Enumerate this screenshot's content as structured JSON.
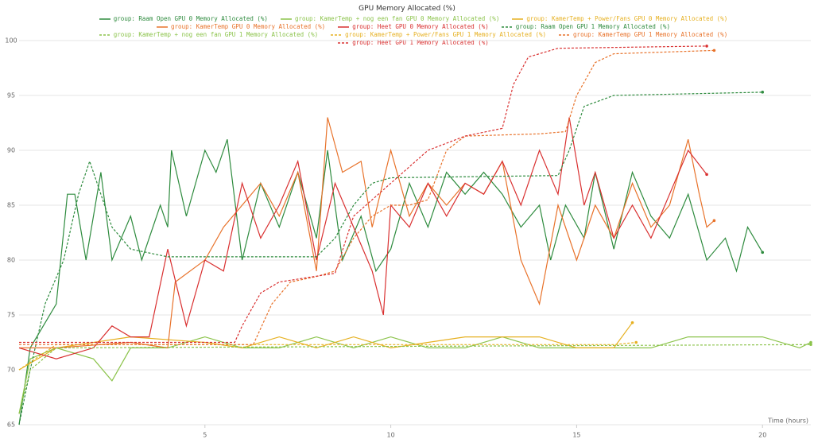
{
  "chart_data": {
    "type": "line",
    "title": "GPU Memory Allocated (%)",
    "x_label": "Time (hours)",
    "xlim": [
      0,
      21.3
    ],
    "ylim": [
      65,
      100
    ],
    "xticks": [
      5,
      10,
      15,
      20
    ],
    "yticks": [
      65,
      70,
      75,
      80,
      85,
      90,
      95,
      100
    ],
    "grid": true,
    "end_marker": true,
    "series": [
      {
        "name": "group: Raam Open GPU 0 Memory Allocated (%)",
        "color": "#2e8b3e",
        "style": "solid",
        "x": [
          0,
          0.3,
          1,
          1.3,
          1.5,
          1.8,
          2.2,
          2.5,
          3,
          3.3,
          3.8,
          4,
          4.1,
          4.5,
          5,
          5.3,
          5.6,
          6,
          6.5,
          7,
          7.5,
          8,
          8.3,
          8.7,
          9.2,
          9.6,
          10,
          10.5,
          11,
          11.5,
          12,
          12.5,
          13,
          13.5,
          14,
          14.3,
          14.7,
          15.2,
          15.5,
          16,
          16.5,
          17,
          17.5,
          18,
          18.5,
          19,
          19.3,
          19.6,
          20
        ],
        "values": [
          65,
          72,
          76,
          86,
          86,
          80,
          88,
          80,
          84,
          80,
          85,
          83,
          90,
          84,
          90,
          88,
          91,
          80,
          87,
          83,
          88,
          82,
          90,
          80,
          84,
          79,
          81,
          87,
          83,
          88,
          86,
          88,
          86,
          83,
          85,
          80,
          85,
          82,
          88,
          81,
          88,
          84,
          82,
          86,
          80,
          82,
          79,
          83,
          80.7
        ]
      },
      {
        "name": "group: KamerTemp + nog een fan GPU 0 Memory Allocated (%)",
        "color": "#8bc34a",
        "style": "solid",
        "x": [
          0,
          0.3,
          1,
          2,
          2.5,
          3,
          4,
          5,
          6,
          7,
          8,
          9,
          10,
          11,
          12,
          13,
          14,
          15,
          16,
          17,
          18,
          19,
          20,
          21,
          21.3
        ],
        "values": [
          66,
          71,
          72,
          71,
          69,
          72,
          72,
          73,
          72,
          72,
          73,
          72,
          73,
          72,
          72,
          73,
          72,
          72,
          72,
          72,
          73,
          73,
          73,
          72,
          72.5
        ]
      },
      {
        "name": "group: KamerTemp + Power/Fans GPU 0 Memory Allocated (%)",
        "color": "#e6b020",
        "style": "solid",
        "x": [
          0,
          1,
          3,
          5,
          6,
          7,
          8,
          9,
          10,
          12,
          14,
          15,
          16,
          16.5
        ],
        "values": [
          70,
          72,
          73,
          72.5,
          72,
          73,
          72,
          73,
          72,
          73,
          73,
          72,
          72,
          74.3
        ]
      },
      {
        "name": "group: KamerTemp GPU 0 Memory Allocated (%)",
        "color": "#e8722a",
        "style": "solid",
        "x": [
          0,
          1,
          3,
          4,
          4.2,
          5,
          5.5,
          6,
          6.5,
          7,
          7.5,
          8,
          8.3,
          8.7,
          9.2,
          9.5,
          10,
          10.5,
          11,
          11.5,
          12,
          12.5,
          13,
          13.5,
          14,
          14.5,
          15,
          15.5,
          16,
          16.5,
          17,
          17.5,
          18,
          18.3,
          18.5,
          18.7
        ],
        "values": [
          72,
          72,
          72.5,
          72,
          78,
          80,
          83,
          85,
          87,
          84,
          88,
          79,
          93,
          88,
          89,
          83,
          90,
          84,
          87,
          85,
          87,
          86,
          89,
          80,
          76,
          85,
          80,
          85,
          82,
          87,
          83,
          85,
          91,
          86,
          83,
          83.6
        ]
      },
      {
        "name": "group: Heet GPU 0 Memory Allocated (%)",
        "color": "#d93030",
        "style": "solid",
        "x": [
          0,
          1,
          2,
          2.5,
          3,
          3.5,
          4,
          4.5,
          5,
          5.5,
          6,
          6.5,
          7,
          7.5,
          8,
          8.5,
          9,
          9.5,
          9.8,
          10,
          10.5,
          11,
          11.5,
          12,
          12.5,
          13,
          13.5,
          14,
          14.5,
          14.8,
          15.2,
          15.5,
          16,
          16.5,
          17,
          17.5,
          18,
          18.5
        ],
        "values": [
          72,
          71,
          72,
          74,
          73,
          73,
          81,
          74,
          80,
          79,
          87,
          82,
          85,
          89,
          80,
          87,
          83,
          79,
          75,
          85,
          83,
          87,
          84,
          87,
          86,
          89,
          85,
          90,
          86,
          93,
          85,
          88,
          82,
          85,
          82,
          86,
          90,
          87.8
        ]
      },
      {
        "name": "group: Raam Open GPU 1 Memory Allocated (%)",
        "color": "#2e8b3e",
        "style": "dashed",
        "x": [
          0,
          0.3,
          0.7,
          1.2,
          1.6,
          1.9,
          2.1,
          2.5,
          3,
          4,
          8,
          8.5,
          9,
          9.5,
          10,
          14.5,
          14.8,
          15.2,
          16,
          20
        ],
        "values": [
          65,
          70,
          76,
          80,
          86,
          89,
          87,
          83,
          81,
          80.3,
          80.3,
          82,
          85,
          87,
          87.5,
          87.7,
          90,
          94,
          95,
          95.3
        ]
      },
      {
        "name": "group: KamerTemp + nog een fan GPU 1 Memory Allocated (%)",
        "color": "#8bc34a",
        "style": "dashed",
        "x": [
          0,
          0.3,
          1,
          21.3
        ],
        "values": [
          66,
          70,
          72,
          72.3
        ]
      },
      {
        "name": "group: KamerTemp + Power/Fans GPU 1 Memory Allocated (%)",
        "color": "#e6b020",
        "style": "dashed",
        "x": [
          0,
          1,
          16,
          16.6
        ],
        "values": [
          70,
          72.3,
          72.3,
          72.5
        ]
      },
      {
        "name": "group: KamerTemp GPU 1 Memory Allocated (%)",
        "color": "#e8722a",
        "style": "dashed",
        "x": [
          0,
          6.3,
          6.8,
          7.3,
          8,
          8.5,
          9,
          9.5,
          10,
          10.5,
          11,
          11.5,
          12,
          14,
          14.7,
          15,
          15.5,
          16,
          18.7
        ],
        "values": [
          72.3,
          72.3,
          76,
          78,
          78.5,
          79,
          82,
          84,
          85,
          85,
          85.5,
          90,
          91.3,
          91.5,
          91.7,
          95,
          98,
          98.8,
          99.1
        ]
      },
      {
        "name": "group: Heet GPU 1 Memory Allocated (%)",
        "color": "#d93030",
        "style": "dashed",
        "x": [
          0,
          5.8,
          6,
          6.5,
          7,
          8.5,
          9,
          10,
          11,
          12,
          13,
          13.3,
          13.7,
          14.5,
          18.5
        ],
        "values": [
          72.5,
          72.5,
          74,
          77,
          78,
          78.8,
          84,
          87,
          90,
          91.3,
          92,
          96,
          98.5,
          99.3,
          99.5
        ]
      }
    ]
  }
}
